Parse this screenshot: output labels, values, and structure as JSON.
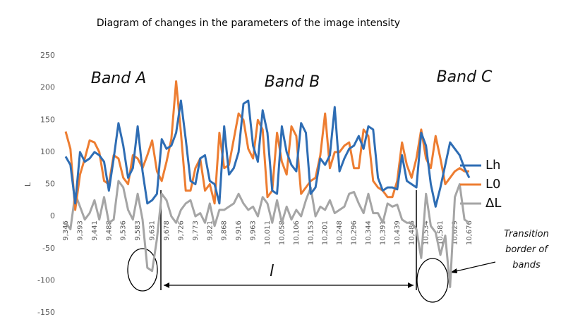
{
  "chart_data": {
    "type": "line",
    "title": "Diagram of changes in the parameters of the image intensity",
    "y_label": "L",
    "categories": [
      "9,346",
      null,
      null,
      "9,393",
      null,
      null,
      "9,441",
      null,
      null,
      "9,488",
      null,
      null,
      "9,536",
      null,
      null,
      "9,583",
      null,
      null,
      "9,631",
      null,
      null,
      "9,678",
      null,
      null,
      "9,726",
      null,
      null,
      "9,773",
      null,
      null,
      "9,821",
      null,
      null,
      "9,868",
      null,
      null,
      "9,916",
      null,
      null,
      "9,963",
      null,
      null,
      "10,011",
      null,
      null,
      "10,058",
      null,
      null,
      "10,106",
      null,
      null,
      "10,153",
      null,
      null,
      "10,201",
      null,
      null,
      "10,248",
      null,
      null,
      "10,296",
      null,
      null,
      "10,344",
      null,
      null,
      "10,391",
      null,
      null,
      "10,439",
      null,
      null,
      "10,486",
      null,
      null,
      "10,534",
      null,
      null,
      "10,581",
      null,
      null,
      "10,629",
      null,
      null,
      "10,676"
    ],
    "series": [
      {
        "name": "Lh",
        "color": "#2e6db4",
        "values": [
          93,
          80,
          20,
          100,
          85,
          90,
          100,
          95,
          85,
          40,
          90,
          145,
          110,
          60,
          75,
          140,
          70,
          20,
          25,
          35,
          120,
          105,
          110,
          130,
          180,
          120,
          55,
          50,
          90,
          95,
          55,
          50,
          20,
          140,
          65,
          75,
          100,
          175,
          180,
          110,
          85,
          165,
          130,
          40,
          35,
          140,
          100,
          80,
          70,
          145,
          130,
          35,
          45,
          90,
          80,
          95,
          170,
          70,
          90,
          105,
          110,
          125,
          105,
          140,
          135,
          60,
          40,
          45,
          45,
          42,
          95,
          55,
          50,
          45,
          130,
          110,
          50,
          15,
          45,
          80,
          115,
          105,
          95,
          75,
          60
        ]
      },
      {
        "name": "L0",
        "color": "#ed7d31",
        "values": [
          132,
          105,
          10,
          65,
          90,
          118,
          115,
          100,
          55,
          50,
          95,
          90,
          60,
          50,
          95,
          90,
          75,
          95,
          118,
          70,
          55,
          85,
          120,
          210,
          130,
          40,
          40,
          75,
          90,
          40,
          50,
          20,
          130,
          75,
          80,
          120,
          160,
          150,
          105,
          90,
          150,
          135,
          30,
          40,
          130,
          85,
          65,
          140,
          125,
          35,
          45,
          55,
          60,
          95,
          160,
          75,
          100,
          100,
          110,
          115,
          75,
          75,
          135,
          125,
          55,
          45,
          40,
          30,
          30,
          55,
          115,
          80,
          60,
          90,
          135,
          90,
          75,
          125,
          90,
          50,
          60,
          70,
          75,
          70,
          70
        ]
      },
      {
        "name": "ΔL",
        "color": "#a5a5a5",
        "values": [
          -10,
          -20,
          35,
          15,
          -5,
          5,
          25,
          -5,
          30,
          -10,
          -5,
          55,
          45,
          10,
          -5,
          35,
          -5,
          -80,
          -85,
          -35,
          35,
          25,
          0,
          -10,
          10,
          20,
          25,
          0,
          5,
          -10,
          20,
          -15,
          10,
          10,
          15,
          20,
          35,
          20,
          10,
          15,
          0,
          30,
          20,
          -10,
          25,
          -10,
          15,
          -5,
          10,
          0,
          25,
          45,
          0,
          15,
          10,
          25,
          5,
          10,
          15,
          35,
          38,
          20,
          5,
          35,
          5,
          5,
          -10,
          20,
          15,
          18,
          -5,
          -10,
          -10,
          -20,
          -65,
          35,
          -15,
          -25,
          -60,
          -30,
          -110,
          30,
          50,
          -5,
          -10
        ]
      }
    ],
    "ylim": [
      -150,
      250
    ],
    "yticks": [
      -150,
      -100,
      -50,
      0,
      50,
      100,
      150,
      200,
      250
    ],
    "grid": false,
    "legend": "right",
    "annotations": [
      "Band A",
      "Band B",
      "Band C",
      "l",
      "Transition border of bands"
    ]
  }
}
